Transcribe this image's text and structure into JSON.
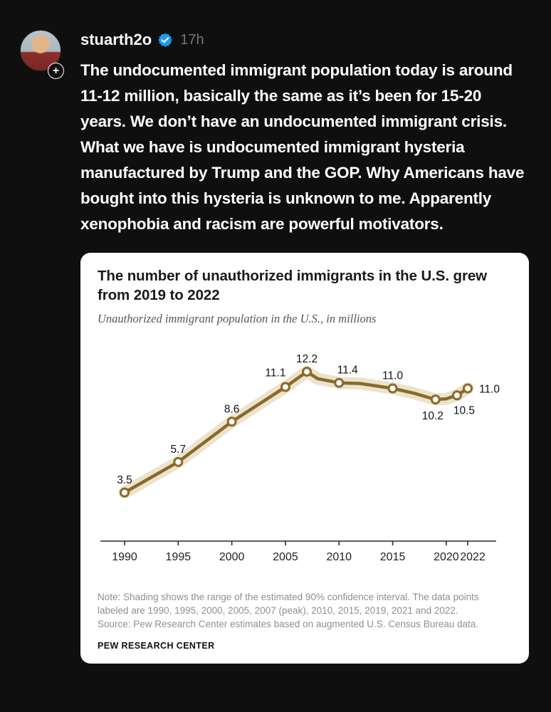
{
  "post": {
    "username": "stuarth2o",
    "timestamp": "17h",
    "follow_button": "+",
    "body": "The undocumented immigrant population today is around 11-12 million, basically the same as it’s been for 15-20 years. We don’t have an undocumented immigrant crisis. What we have is undocumented immigrant hysteria manufactured by Trump and the GOP. Why Americans have bought into this hysteria is unknown to me. Apparently xenophobia and racism are powerful motivators."
  },
  "chart_card": {
    "title": "The number of unauthorized immigrants in the U.S. grew from 2019 to 2022",
    "subtitle": "Unauthorized immigrant population in the U.S., in millions",
    "note": "Note: Shading shows the range of the estimated 90% confidence interval. The data points labeled are 1990, 1995, 2000, 2005, 2007 (peak), 2010, 2015, 2019, 2021 and 2022.",
    "source": "Source: Pew Research Center estimates based on augmented U.S. Census Bureau data.",
    "footer": "PEW RESEARCH CENTER"
  },
  "chart_data": {
    "type": "line",
    "title": "The number of unauthorized immigrants in the U.S. grew from 2019 to 2022",
    "subtitle": "Unauthorized immigrant population in the U.S., in millions",
    "xlabel": "",
    "ylabel": "millions",
    "xlim": [
      1988,
      2024
    ],
    "ylim": [
      0,
      13
    ],
    "x_ticks": [
      1990,
      1995,
      2000,
      2005,
      2010,
      2015,
      2020,
      2022
    ],
    "legend": "none",
    "grid": false,
    "series": [
      {
        "name": "Unauthorized immigrant population (millions)",
        "points": [
          {
            "year": 1990,
            "value": 3.5,
            "label": "3.5",
            "label_pos": "above"
          },
          {
            "year": 1995,
            "value": 5.7,
            "label": "5.7",
            "label_pos": "above"
          },
          {
            "year": 2000,
            "value": 8.6,
            "label": "8.6",
            "label_pos": "above"
          },
          {
            "year": 2005,
            "value": 11.1,
            "label": "11.1",
            "label_pos": "above-left"
          },
          {
            "year": 2007,
            "value": 12.2,
            "label": "12.2",
            "label_pos": "above"
          },
          {
            "year": 2008,
            "value": 11.7
          },
          {
            "year": 2010,
            "value": 11.4,
            "label": "11.4",
            "label_pos": "above-right"
          },
          {
            "year": 2012,
            "value": 11.35
          },
          {
            "year": 2015,
            "value": 11.0,
            "label": "11.0",
            "label_pos": "above"
          },
          {
            "year": 2017,
            "value": 10.65
          },
          {
            "year": 2019,
            "value": 10.2,
            "label": "10.2",
            "label_pos": "below"
          },
          {
            "year": 2020,
            "value": 10.25
          },
          {
            "year": 2021,
            "value": 10.5,
            "label": "10.5",
            "label_pos": "below-right"
          },
          {
            "year": 2022,
            "value": 11.0,
            "label": "11.0",
            "label_pos": "right"
          }
        ]
      }
    ],
    "colors": {
      "line": "#8a6a28",
      "band": "#ebe3cd",
      "point_fill": "#ffffff",
      "axis": "#2a2a2a",
      "label": "#111111"
    },
    "annotations": "Shaded band = 90% confidence interval"
  },
  "colors": {
    "page_background": "#0f0f0f",
    "text_primary": "#ffffff",
    "text_secondary": "#71767b",
    "verified_blue": "#1d9bf0",
    "card_background": "#ffffff"
  }
}
